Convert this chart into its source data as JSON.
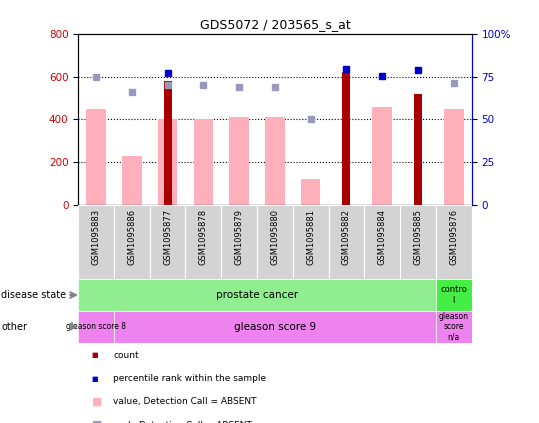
{
  "title": "GDS5072 / 203565_s_at",
  "samples": [
    "GSM1095883",
    "GSM1095886",
    "GSM1095877",
    "GSM1095878",
    "GSM1095879",
    "GSM1095880",
    "GSM1095881",
    "GSM1095882",
    "GSM1095884",
    "GSM1095885",
    "GSM1095876"
  ],
  "count_values": [
    null,
    null,
    580,
    null,
    null,
    null,
    null,
    620,
    null,
    520,
    null
  ],
  "value_absent": [
    450,
    230,
    400,
    400,
    410,
    410,
    120,
    null,
    460,
    null,
    450
  ],
  "rank_absent_left": [
    600,
    530,
    560,
    560,
    550,
    550,
    400,
    null,
    null,
    null,
    570
  ],
  "percentile_dark": [
    null,
    null,
    615,
    null,
    null,
    null,
    null,
    635,
    605,
    630,
    null
  ],
  "ylim_left": [
    0,
    800
  ],
  "ylim_right": [
    0,
    100
  ],
  "left_ticks": [
    0,
    200,
    400,
    600,
    800
  ],
  "right_ticks": [
    0,
    25,
    50,
    75,
    100
  ],
  "count_red": "#cc0000",
  "rank_blue": "#0000cc",
  "bar_dark_red": "#aa0000",
  "bar_pink": "#ffb0bb",
  "dot_dark_blue": "#0000cc",
  "dot_light_purple": "#9999bb",
  "bg_gray": "#d3d3d3",
  "prostate_green": "#90ee90",
  "control_green": "#44ee44",
  "gleason_purple": "#ee82ee",
  "gleason_na_purple": "#ee82ee"
}
